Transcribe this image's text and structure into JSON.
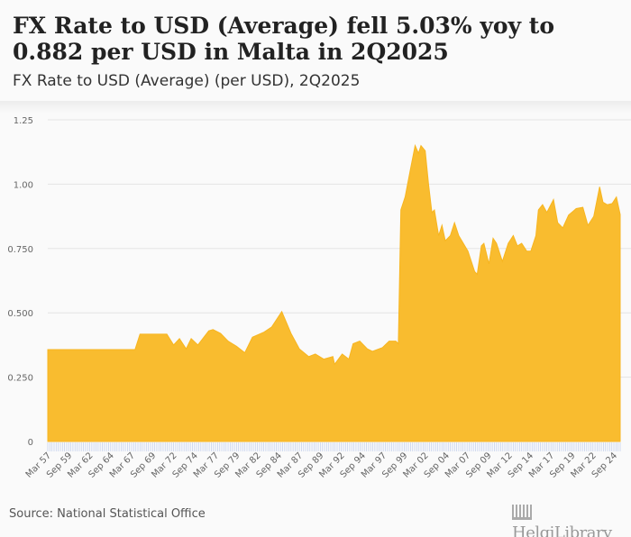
{
  "header": {
    "title": "FX Rate to USD (Average) fell 5.03% yoy to 0.882 per USD in Malta in 2Q2025",
    "subtitle": "FX Rate to USD (Average) (per USD), 2Q2025"
  },
  "footer": {
    "source": "Source: National Statistical Office",
    "logo": "HelgiLibrary"
  },
  "colors": {
    "fill": "#f9bc2f",
    "grid": "#e4e4e4",
    "ticks": "#c6d2ee"
  },
  "chart_data": {
    "type": "area",
    "title": "FX Rate to USD (Average) (per USD), 2Q2025",
    "xlabel": "",
    "ylabel": "",
    "ylim": [
      0,
      1.25
    ],
    "yticks": [
      {
        "v": 0,
        "label": "0"
      },
      {
        "v": 0.25,
        "label": "0.250"
      },
      {
        "v": 0.5,
        "label": "0.500"
      },
      {
        "v": 0.75,
        "label": "0.750"
      },
      {
        "v": 1.0,
        "label": "1.00"
      },
      {
        "v": 1.25,
        "label": "1.25"
      }
    ],
    "xlim": [
      1957.0,
      2025.25
    ],
    "xtick_labels": [
      "Mar 57",
      "Sep 59",
      "Mar 62",
      "Sep 64",
      "Mar 67",
      "Sep 69",
      "Mar 72",
      "Sep 74",
      "Mar 77",
      "Sep 79",
      "Mar 82",
      "Sep 84",
      "Mar 87",
      "Sep 89",
      "Mar 92",
      "Sep 94",
      "Mar 97",
      "Sep 99",
      "Mar 02",
      "Sep 04",
      "Mar 07",
      "Sep 09",
      "Mar 12",
      "Sep 14",
      "Mar 17",
      "Sep 19",
      "Mar 22",
      "Sep 24"
    ],
    "grid": true,
    "points": [
      [
        1957.0,
        0.357
      ],
      [
        1967.4,
        0.357
      ],
      [
        1968.0,
        0.417
      ],
      [
        1971.2,
        0.417
      ],
      [
        1972.0,
        0.375
      ],
      [
        1972.7,
        0.4
      ],
      [
        1973.5,
        0.36
      ],
      [
        1974.1,
        0.4
      ],
      [
        1974.9,
        0.375
      ],
      [
        1976.2,
        0.43
      ],
      [
        1976.7,
        0.435
      ],
      [
        1977.6,
        0.42
      ],
      [
        1978.5,
        0.39
      ],
      [
        1979.5,
        0.37
      ],
      [
        1980.5,
        0.345
      ],
      [
        1981.4,
        0.405
      ],
      [
        1982.8,
        0.425
      ],
      [
        1983.7,
        0.445
      ],
      [
        1984.9,
        0.505
      ],
      [
        1986.0,
        0.42
      ],
      [
        1987.0,
        0.36
      ],
      [
        1988.1,
        0.33
      ],
      [
        1988.9,
        0.34
      ],
      [
        1989.9,
        0.32
      ],
      [
        1991.0,
        0.33
      ],
      [
        1991.2,
        0.3
      ],
      [
        1992.1,
        0.34
      ],
      [
        1992.9,
        0.32
      ],
      [
        1993.4,
        0.38
      ],
      [
        1994.2,
        0.39
      ],
      [
        1995.1,
        0.36
      ],
      [
        1995.7,
        0.35
      ],
      [
        1996.9,
        0.365
      ],
      [
        1997.7,
        0.39
      ],
      [
        1998.5,
        0.39
      ],
      [
        1998.8,
        0.38
      ],
      [
        1999.1,
        0.9
      ],
      [
        1999.6,
        0.95
      ],
      [
        2000.2,
        1.05
      ],
      [
        2000.8,
        1.15
      ],
      [
        2001.2,
        1.12
      ],
      [
        2001.5,
        1.15
      ],
      [
        2002.0,
        1.13
      ],
      [
        2002.4,
        1.0
      ],
      [
        2002.8,
        0.89
      ],
      [
        2003.1,
        0.9
      ],
      [
        2003.6,
        0.8
      ],
      [
        2004.0,
        0.84
      ],
      [
        2004.4,
        0.78
      ],
      [
        2005.0,
        0.8
      ],
      [
        2005.5,
        0.85
      ],
      [
        2006.0,
        0.8
      ],
      [
        2007.1,
        0.74
      ],
      [
        2007.9,
        0.66
      ],
      [
        2008.2,
        0.65
      ],
      [
        2008.7,
        0.76
      ],
      [
        2009.0,
        0.77
      ],
      [
        2009.6,
        0.69
      ],
      [
        2010.1,
        0.79
      ],
      [
        2010.5,
        0.77
      ],
      [
        2011.2,
        0.7
      ],
      [
        2011.9,
        0.77
      ],
      [
        2012.5,
        0.8
      ],
      [
        2013.0,
        0.76
      ],
      [
        2013.5,
        0.77
      ],
      [
        2014.1,
        0.74
      ],
      [
        2014.6,
        0.74
      ],
      [
        2015.2,
        0.8
      ],
      [
        2015.5,
        0.9
      ],
      [
        2016.0,
        0.92
      ],
      [
        2016.5,
        0.89
      ],
      [
        2017.3,
        0.94
      ],
      [
        2017.8,
        0.85
      ],
      [
        2018.4,
        0.83
      ],
      [
        2019.1,
        0.88
      ],
      [
        2020.0,
        0.905
      ],
      [
        2020.8,
        0.91
      ],
      [
        2021.4,
        0.84
      ],
      [
        2022.1,
        0.875
      ],
      [
        2022.8,
        0.99
      ],
      [
        2023.2,
        0.93
      ],
      [
        2023.7,
        0.92
      ],
      [
        2024.3,
        0.925
      ],
      [
        2024.8,
        0.95
      ],
      [
        2025.25,
        0.882
      ]
    ]
  }
}
